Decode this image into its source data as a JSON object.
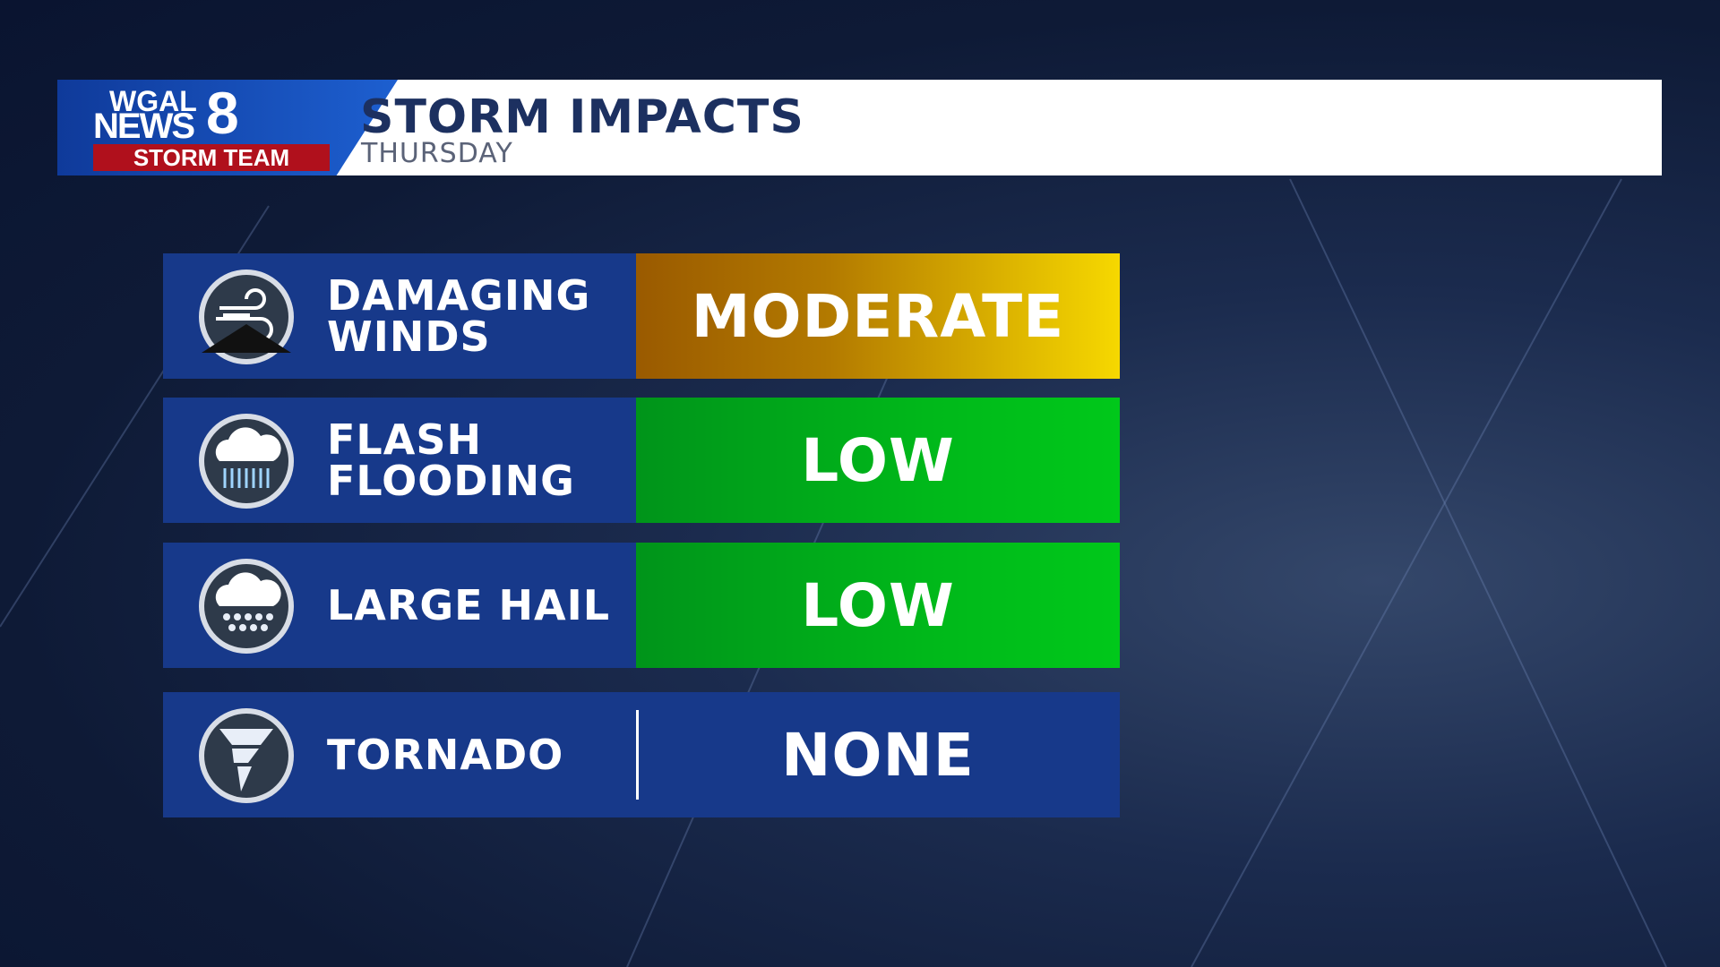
{
  "header": {
    "logo": {
      "line1": "WGAL",
      "line2": "NEWS",
      "channel": "8",
      "team": "STORM TEAM"
    },
    "title": "STORM IMPACTS",
    "subtitle": "THURSDAY"
  },
  "rows": [
    {
      "label": [
        "DAMAGING",
        "WINDS"
      ],
      "level": "MODERATE",
      "icon": "wind"
    },
    {
      "label": [
        "FLASH",
        "FLOODING"
      ],
      "level": "LOW",
      "icon": "rain"
    },
    {
      "label": [
        "LARGE HAIL"
      ],
      "level": "LOW",
      "icon": "hail"
    },
    {
      "label": [
        "TORNADO"
      ],
      "level": "NONE",
      "icon": "tornado"
    }
  ]
}
